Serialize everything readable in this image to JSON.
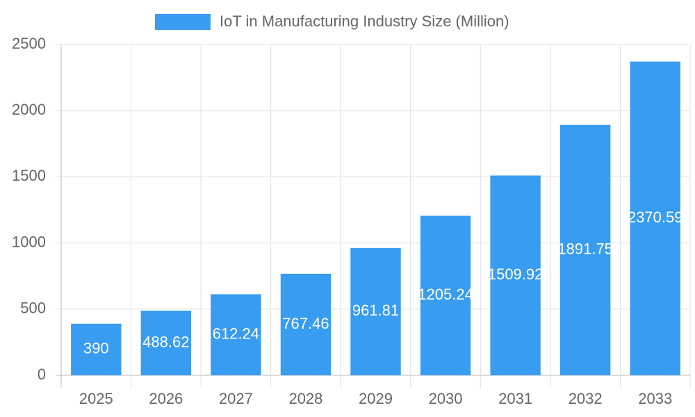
{
  "chart_data": {
    "type": "bar",
    "categories": [
      "2025",
      "2026",
      "2027",
      "2028",
      "2029",
      "2030",
      "2031",
      "2032",
      "2033"
    ],
    "series": [
      {
        "name": "IoT in Manufacturing Industry Size (Million)",
        "color": "#389cf0",
        "values": [
          390,
          488.62,
          612.24,
          767.46,
          961.81,
          1205.24,
          1509.92,
          1891.75,
          2370.59
        ]
      }
    ],
    "ylim": [
      0,
      2500
    ],
    "yticks": [
      0,
      500,
      1000,
      1500,
      2000,
      2500
    ],
    "grid": true,
    "data_labels": true,
    "legend": "top"
  }
}
